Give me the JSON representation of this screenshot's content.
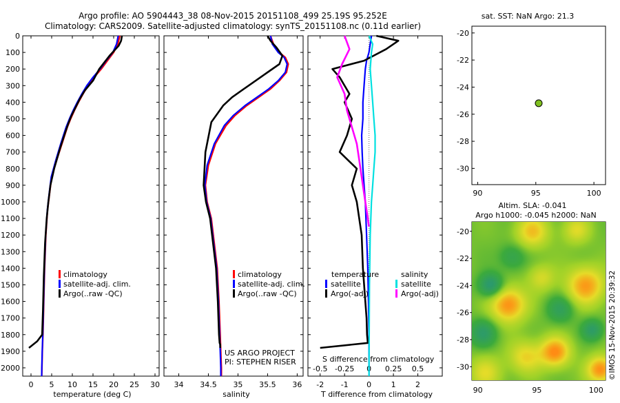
{
  "header": {
    "line1": "Argo profile: AO 5904443_38 08-Nov-2015 20151108_499 25.19S 95.252E",
    "line2": "Climatology: CARS2009. Satellite-adjusted climatology: synTS_20151108.nc (0.11d earlier)"
  },
  "colors": {
    "climatology": "#ff0000",
    "satellite": "#0000ff",
    "argo": "#000000",
    "salinity_satellite": "#00e0e0",
    "salinity_argo": "#ff00ff",
    "dot": "#80c020"
  },
  "depth_axis": {
    "range": [
      0,
      2050
    ],
    "ticks": [
      0,
      100,
      200,
      300,
      400,
      500,
      600,
      700,
      800,
      900,
      1000,
      1100,
      1200,
      1300,
      1400,
      1500,
      1600,
      1700,
      1800,
      1900,
      2000
    ]
  },
  "legend": {
    "climatology": "climatology",
    "satellite_adj": "satellite-adj. clim.",
    "argo_raw": "Argo(..raw -QC)",
    "temperature": "temperature",
    "salinity": "salinity",
    "satellite": "satellite",
    "argo_adj": "Argo(-adj)"
  },
  "project": {
    "line1": "US ARGO PROJECT",
    "line2": "PI: STEPHEN RISER"
  },
  "sst_panel": {
    "title": "sat. SST: NaN Argo: 21.3",
    "xticks": [
      90,
      95,
      100
    ],
    "yticks": [
      -20,
      -22,
      -24,
      -26,
      -28,
      -30
    ],
    "xlim": [
      89.5,
      101
    ],
    "ylim": [
      -31.2,
      -19.5
    ],
    "point": [
      95.25,
      -25.19
    ]
  },
  "sla_panel": {
    "title1": "Altim. SLA: -0.041",
    "title2": "Argo h1000: -0.045 h2000: NaN",
    "xticks": [
      90,
      95,
      100
    ],
    "yticks": [
      -20,
      -22,
      -24,
      -26,
      -28,
      -30
    ],
    "xlim": [
      89.5,
      100.8
    ],
    "ylim": [
      -31,
      -19.3
    ]
  },
  "credit": "©IMOS 15-Nov-2015 20:39:32",
  "chart_data": [
    {
      "type": "line",
      "id": "temperature",
      "xlabel": "temperature (deg C)",
      "xlim": [
        -2,
        31
      ],
      "xticks": [
        0,
        5,
        10,
        15,
        20,
        25,
        30
      ],
      "ylim": [
        0,
        2050
      ],
      "series": [
        {
          "name": "climatology",
          "x": [
            21.5,
            21.0,
            20.0,
            18.5,
            17.0,
            15.3,
            13.8,
            12.6,
            11.5,
            10.5,
            9.6,
            8.8,
            7.5,
            6.2,
            5.0,
            4.5,
            4.0,
            3.6,
            3.3,
            3.1,
            2.9,
            2.75,
            2.65,
            2.6
          ],
          "depth": [
            0,
            50,
            100,
            150,
            200,
            250,
            300,
            350,
            400,
            450,
            500,
            550,
            650,
            750,
            850,
            950,
            1050,
            1200,
            1400,
            1600,
            1800,
            1900,
            2000,
            2050
          ]
        },
        {
          "name": "satellite-adj. clim.",
          "x": [
            21.1,
            20.7,
            19.8,
            18.2,
            16.7,
            15.0,
            13.5,
            12.3,
            11.2,
            10.2,
            9.3,
            8.5,
            7.2,
            6.0,
            4.9,
            4.4,
            3.95,
            3.55,
            3.25,
            3.05,
            2.85,
            2.72,
            2.62,
            2.58
          ],
          "depth": [
            0,
            50,
            100,
            150,
            200,
            250,
            300,
            350,
            400,
            450,
            500,
            550,
            650,
            750,
            850,
            950,
            1050,
            1200,
            1400,
            1600,
            1800,
            1900,
            2000,
            2050
          ]
        },
        {
          "name": "Argo(..raw -QC)",
          "x": [
            22.0,
            21.8,
            21.2,
            19.0,
            16.5,
            15.0,
            13.0,
            11.8,
            10.8,
            9.8,
            9.0,
            8.3,
            7.0,
            5.6,
            4.7,
            4.2,
            3.8,
            3.4,
            3.1,
            2.9,
            2.7,
            1.5,
            -0.5
          ],
          "depth": [
            0,
            30,
            60,
            120,
            200,
            270,
            330,
            380,
            430,
            480,
            530,
            580,
            680,
            800,
            900,
            1000,
            1100,
            1250,
            1450,
            1650,
            1800,
            1840,
            1880
          ]
        }
      ]
    },
    {
      "type": "line",
      "id": "salinity",
      "xlabel": "salinity",
      "xlim": [
        33.75,
        36.1
      ],
      "xticks": [
        34,
        34.5,
        35,
        35.5,
        36
      ],
      "ylim": [
        0,
        2050
      ],
      "series": [
        {
          "name": "climatology",
          "x": [
            35.55,
            35.6,
            35.7,
            35.8,
            35.85,
            35.82,
            35.7,
            35.55,
            35.35,
            35.15,
            34.95,
            34.8,
            34.62,
            34.5,
            34.45,
            34.48,
            34.55,
            34.6,
            34.65,
            34.68,
            34.7,
            34.71,
            34.72,
            34.72
          ],
          "depth": [
            0,
            50,
            100,
            130,
            170,
            220,
            270,
            320,
            370,
            420,
            480,
            540,
            650,
            780,
            900,
            1000,
            1100,
            1250,
            1400,
            1600,
            1800,
            1900,
            2000,
            2050
          ]
        },
        {
          "name": "satellite-adj. clim.",
          "x": [
            35.55,
            35.58,
            35.68,
            35.78,
            35.83,
            35.8,
            35.68,
            35.52,
            35.32,
            35.12,
            34.92,
            34.77,
            34.6,
            34.48,
            34.44,
            34.47,
            34.54,
            34.59,
            34.64,
            34.67,
            34.69,
            34.7,
            34.71,
            34.71
          ],
          "depth": [
            0,
            50,
            100,
            130,
            170,
            220,
            270,
            320,
            370,
            420,
            480,
            540,
            650,
            780,
            900,
            1000,
            1100,
            1250,
            1400,
            1600,
            1800,
            1900,
            2000,
            2050
          ]
        },
        {
          "name": "Argo(..raw -QC)",
          "x": [
            35.5,
            35.55,
            35.65,
            35.75,
            35.7,
            35.5,
            35.3,
            35.1,
            34.9,
            34.75,
            34.55,
            34.45,
            34.42,
            34.46,
            34.53,
            34.58,
            34.63,
            34.66,
            34.68,
            34.69,
            34.7,
            34.7
          ],
          "depth": [
            0,
            30,
            70,
            120,
            170,
            220,
            270,
            320,
            370,
            420,
            520,
            700,
            900,
            1000,
            1100,
            1250,
            1400,
            1600,
            1800,
            1850,
            1860,
            1880
          ]
        }
      ]
    },
    {
      "type": "line",
      "id": "differences",
      "xlabel": "T difference from climatology",
      "xlabel_top": "S difference from climatology",
      "xlim": [
        -2.5,
        3
      ],
      "xticks": [
        -2,
        -1,
        0,
        1,
        2
      ],
      "xticks_top": [
        "-0.5",
        "-0.25",
        "0",
        "0.25",
        "0.5"
      ],
      "xticks_top_at": [
        -2,
        -1,
        0,
        1,
        2
      ],
      "ylim": [
        0,
        2050
      ],
      "series": [
        {
          "name": "temperature satellite",
          "x": [
            0.1,
            0.0,
            -0.1,
            -0.15,
            -0.2,
            -0.25,
            -0.25,
            -0.3,
            -0.28,
            -0.25,
            -0.2,
            -0.15,
            -0.1,
            -0.05,
            -0.02,
            0.0,
            0.0
          ],
          "depth": [
            0,
            100,
            150,
            200,
            300,
            400,
            500,
            600,
            700,
            800,
            900,
            1000,
            1200,
            1400,
            1600,
            1800,
            2050
          ]
        },
        {
          "name": "temperature Argo(-adj)",
          "x": [
            0.3,
            1.2,
            0.7,
            -0.2,
            -1.5,
            -1.2,
            -1.0,
            -0.8,
            -1.0,
            -0.7,
            -0.9,
            -1.2,
            -0.5,
            -0.7,
            -0.5,
            -0.3,
            -0.25,
            -0.15,
            -0.1,
            -0.08,
            -0.05,
            -2.0
          ],
          "depth": [
            0,
            30,
            80,
            150,
            200,
            250,
            300,
            350,
            400,
            500,
            600,
            700,
            800,
            900,
            1000,
            1200,
            1400,
            1600,
            1700,
            1800,
            1850,
            1880
          ]
        },
        {
          "name": "salinity satellite",
          "x": [
            0.0,
            0.15,
            0.1,
            0.05,
            0.1,
            0.15,
            0.2,
            0.25,
            0.25,
            0.2,
            0.15,
            0.1,
            0.05,
            0.02,
            0.0
          ],
          "depth": [
            0,
            50,
            100,
            200,
            300,
            400,
            500,
            600,
            700,
            800,
            900,
            1000,
            1200,
            1500,
            2050
          ]
        },
        {
          "name": "salinity Argo(-adj)",
          "x": [
            -1.0,
            -0.8,
            -1.1,
            -1.3,
            -1.0,
            -0.9,
            -0.7,
            -0.5,
            -0.4,
            -0.3,
            -0.2,
            -0.1,
            0.0
          ],
          "depth": [
            0,
            80,
            170,
            250,
            350,
            450,
            550,
            650,
            750,
            850,
            950,
            1050,
            1150
          ]
        }
      ]
    }
  ]
}
